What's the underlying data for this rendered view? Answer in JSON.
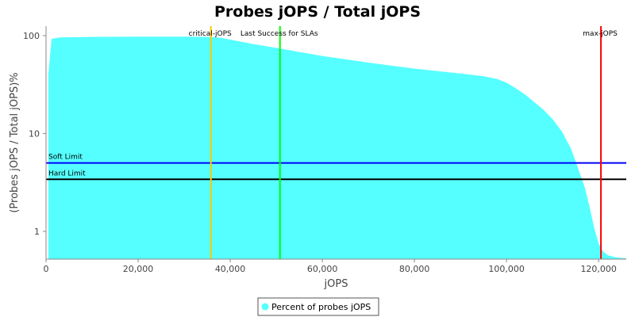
{
  "chart_data": {
    "type": "area",
    "title": "Probes jOPS / Total jOPS",
    "xlabel": "jOPS",
    "ylabel": "(Probes jOPS / Total jOPS)%",
    "xlim": [
      0,
      126000
    ],
    "ylim": [
      0.52,
      125
    ],
    "yscale": "log",
    "grid": false,
    "x_ticks": [
      {
        "value": 0,
        "label": "0"
      },
      {
        "value": 20000,
        "label": "20,000"
      },
      {
        "value": 40000,
        "label": "40,000"
      },
      {
        "value": 60000,
        "label": "60,000"
      },
      {
        "value": 80000,
        "label": "80,000"
      },
      {
        "value": 100000,
        "label": "100,000"
      },
      {
        "value": 120000,
        "label": "120,000"
      }
    ],
    "y_ticks": [
      {
        "value": 1,
        "label": "1"
      },
      {
        "value": 10,
        "label": "10"
      },
      {
        "value": 100,
        "label": "100"
      }
    ],
    "series": [
      {
        "name": "Percent of probes jOPS",
        "color": "#55ffff",
        "x": [
          500,
          1200,
          3000,
          10000,
          20000,
          30000,
          36000,
          38000,
          40000,
          45000,
          50000,
          55000,
          60000,
          70000,
          80000,
          90000,
          95000,
          98000,
          100000,
          102000,
          104000,
          106000,
          108000,
          110000,
          112000,
          114000,
          115000,
          116000,
          117000,
          118000,
          119000,
          120000,
          121000,
          122000,
          124000,
          126000
        ],
        "y": [
          40,
          93,
          96,
          97,
          97.5,
          97.5,
          97,
          95,
          91,
          82,
          75,
          68,
          62,
          53,
          46,
          41,
          38.5,
          36,
          33,
          29,
          25,
          21,
          17.5,
          14,
          10.5,
          7,
          5.2,
          3.8,
          2.8,
          1.8,
          1.1,
          0.75,
          0.62,
          0.57,
          0.54,
          0.53
        ]
      }
    ],
    "vertical_markers": [
      {
        "label": "critical-jOPS",
        "x": 35800,
        "color": "#ffc800"
      },
      {
        "label": "Last Success for SLAs",
        "x": 50800,
        "color": "#00ff00"
      },
      {
        "label": "max-jOPS",
        "x": 120500,
        "color": "#ff0000"
      }
    ],
    "horizontal_markers": [
      {
        "label": "Soft Limit",
        "y": 5,
        "color": "#0000ff"
      },
      {
        "label": "Hard Limit",
        "y": 3.4,
        "color": "#000000"
      }
    ],
    "legend": {
      "placement": "bottom-center",
      "entries": [
        "Percent of probes jOPS"
      ]
    }
  }
}
